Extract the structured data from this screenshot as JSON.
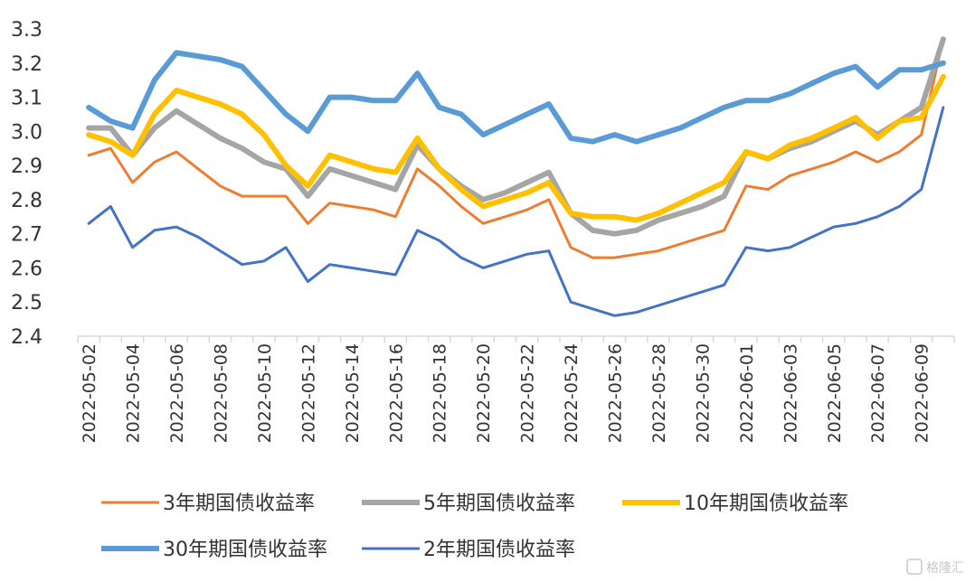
{
  "chart_data": {
    "type": "line",
    "title": "",
    "xlabel": "",
    "ylabel": "",
    "ylim": [
      2.4,
      3.3
    ],
    "yticks": [
      "2.4",
      "2.5",
      "2.6",
      "2.7",
      "2.8",
      "2.9",
      "3.0",
      "3.1",
      "3.2",
      "3.3"
    ],
    "grid": false,
    "legend_position": "bottom",
    "x": [
      "2022-05-02",
      "2022-05-03",
      "2022-05-04",
      "2022-05-05",
      "2022-05-06",
      "2022-05-07",
      "2022-05-08",
      "2022-05-09",
      "2022-05-10",
      "2022-05-11",
      "2022-05-12",
      "2022-05-13",
      "2022-05-14",
      "2022-05-15",
      "2022-05-16",
      "2022-05-17",
      "2022-05-18",
      "2022-05-19",
      "2022-05-20",
      "2022-05-21",
      "2022-05-22",
      "2022-05-23",
      "2022-05-24",
      "2022-05-25",
      "2022-05-26",
      "2022-05-27",
      "2022-05-28",
      "2022-05-29",
      "2022-05-30",
      "2022-05-31",
      "2022-06-01",
      "2022-06-02",
      "2022-06-03",
      "2022-06-04",
      "2022-06-05",
      "2022-06-06",
      "2022-06-07",
      "2022-06-08",
      "2022-06-09",
      "2022-06-10"
    ],
    "x_tick_labels": [
      "2022-05-02",
      "2022-05-04",
      "2022-05-06",
      "2022-05-08",
      "2022-05-10",
      "2022-05-12",
      "2022-05-14",
      "2022-05-16",
      "2022-05-18",
      "2022-05-20",
      "2022-05-22",
      "2022-05-24",
      "2022-05-26",
      "2022-05-28",
      "2022-05-30",
      "2022-06-01",
      "2022-06-03",
      "2022-06-05",
      "2022-06-07",
      "2022-06-09"
    ],
    "series": [
      {
        "name": "3年期国债收益率",
        "color": "#ED7D31",
        "width": 3,
        "values": [
          2.93,
          2.95,
          2.85,
          2.91,
          2.94,
          2.89,
          2.84,
          2.81,
          2.81,
          2.81,
          2.73,
          2.79,
          2.78,
          2.77,
          2.75,
          2.89,
          2.84,
          2.78,
          2.73,
          2.75,
          2.77,
          2.8,
          2.66,
          2.63,
          2.63,
          2.64,
          2.65,
          2.67,
          2.69,
          2.71,
          2.84,
          2.83,
          2.87,
          2.89,
          2.91,
          2.94,
          2.91,
          2.94,
          2.99,
          3.27
        ]
      },
      {
        "name": "5年期国债收益率",
        "color": "#A5A5A5",
        "width": 6,
        "values": [
          3.01,
          3.01,
          2.93,
          3.01,
          3.06,
          3.02,
          2.98,
          2.95,
          2.91,
          2.89,
          2.81,
          2.89,
          2.87,
          2.85,
          2.83,
          2.96,
          2.89,
          2.84,
          2.8,
          2.82,
          2.85,
          2.88,
          2.76,
          2.71,
          2.7,
          2.71,
          2.74,
          2.76,
          2.78,
          2.81,
          2.94,
          2.92,
          2.95,
          2.97,
          3.0,
          3.03,
          2.99,
          3.03,
          3.07,
          3.27
        ]
      },
      {
        "name": "10年期国债收益率",
        "color": "#FFC000",
        "width": 6,
        "values": [
          2.99,
          2.97,
          2.93,
          3.05,
          3.12,
          3.1,
          3.08,
          3.05,
          2.99,
          2.9,
          2.84,
          2.93,
          2.91,
          2.89,
          2.88,
          2.98,
          2.89,
          2.83,
          2.78,
          2.8,
          2.82,
          2.85,
          2.76,
          2.75,
          2.75,
          2.74,
          2.76,
          2.79,
          2.82,
          2.85,
          2.94,
          2.92,
          2.96,
          2.98,
          3.01,
          3.04,
          2.98,
          3.03,
          3.04,
          3.16
        ]
      },
      {
        "name": "30年期国债收益率",
        "color": "#5B9BD5",
        "width": 6,
        "values": [
          3.07,
          3.03,
          3.01,
          3.15,
          3.23,
          3.22,
          3.21,
          3.19,
          3.12,
          3.05,
          3.0,
          3.1,
          3.1,
          3.09,
          3.09,
          3.17,
          3.07,
          3.05,
          2.99,
          3.02,
          3.05,
          3.08,
          2.98,
          2.97,
          2.99,
          2.97,
          2.99,
          3.01,
          3.04,
          3.07,
          3.09,
          3.09,
          3.11,
          3.14,
          3.17,
          3.19,
          3.13,
          3.18,
          3.18,
          3.2
        ]
      },
      {
        "name": "2年期国债收益率",
        "color": "#4472C4",
        "width": 3,
        "values": [
          2.73,
          2.78,
          2.66,
          2.71,
          2.72,
          2.69,
          2.65,
          2.61,
          2.62,
          2.66,
          2.56,
          2.61,
          2.6,
          2.59,
          2.58,
          2.71,
          2.68,
          2.63,
          2.6,
          2.62,
          2.64,
          2.65,
          2.5,
          2.48,
          2.46,
          2.47,
          2.49,
          2.51,
          2.53,
          2.55,
          2.66,
          2.65,
          2.66,
          2.69,
          2.72,
          2.73,
          2.75,
          2.78,
          2.83,
          3.07
        ]
      }
    ]
  },
  "watermark": {
    "text": "格隆汇"
  }
}
